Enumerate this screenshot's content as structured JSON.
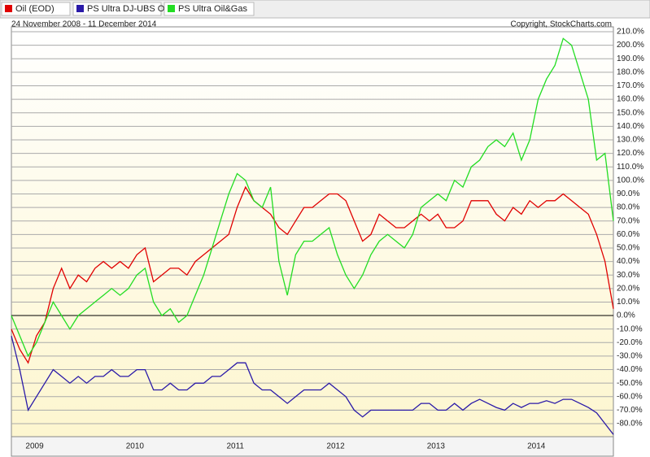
{
  "chart_data": {
    "type": "line",
    "subtitle": "24 November 2008 - 11 December 2014",
    "annotation": "Copyright, StockCharts.com",
    "categories": [
      null,
      null,
      "2009",
      null,
      null,
      null,
      null,
      null,
      null,
      null,
      null,
      null,
      null,
      null,
      "2010",
      null,
      null,
      null,
      null,
      null,
      null,
      null,
      null,
      null,
      null,
      null,
      "2011",
      null,
      null,
      null,
      null,
      null,
      null,
      null,
      null,
      null,
      null,
      null,
      "2012",
      null,
      null,
      null,
      null,
      null,
      null,
      null,
      null,
      null,
      null,
      null,
      "2013",
      null,
      null,
      null,
      null,
      null,
      null,
      null,
      null,
      null,
      null,
      null,
      "2014",
      null,
      null,
      null,
      null,
      null,
      null,
      null,
      null,
      null,
      null
    ],
    "series": [
      {
        "name": "Oil (EOD)",
        "color": "#e00000",
        "values": [
          -10,
          -25,
          -35,
          -15,
          -5,
          20,
          35,
          20,
          30,
          25,
          35,
          40,
          35,
          40,
          35,
          45,
          50,
          25,
          30,
          35,
          35,
          30,
          40,
          45,
          50,
          55,
          60,
          80,
          95,
          85,
          80,
          75,
          65,
          60,
          70,
          80,
          80,
          85,
          90,
          90,
          85,
          70,
          55,
          60,
          75,
          70,
          65,
          65,
          70,
          75,
          70,
          75,
          65,
          65,
          70,
          85,
          85,
          85,
          75,
          70,
          80,
          75,
          85,
          80,
          85,
          85,
          90,
          85,
          80,
          75,
          60,
          40,
          5
        ]
      },
      {
        "name": "PS Ultra DJ-UBS Oil",
        "color": "#2a1aa8",
        "values": [
          -15,
          -40,
          -70,
          -60,
          -50,
          -40,
          -45,
          -50,
          -45,
          -50,
          -45,
          -45,
          -40,
          -45,
          -45,
          -40,
          -40,
          -55,
          -55,
          -50,
          -55,
          -55,
          -50,
          -50,
          -45,
          -45,
          -40,
          -35,
          -35,
          -50,
          -55,
          -55,
          -60,
          -65,
          -60,
          -55,
          -55,
          -55,
          -50,
          -55,
          -60,
          -70,
          -75,
          -70,
          -70,
          -70,
          -70,
          -70,
          -70,
          -65,
          -65,
          -70,
          -70,
          -65,
          -70,
          -65,
          -62,
          -65,
          -68,
          -70,
          -65,
          -68,
          -65,
          -65,
          -63,
          -65,
          -62,
          -62,
          -65,
          -68,
          -72,
          -80,
          -88
        ]
      },
      {
        "name": "PS Ultra Oil&Gas",
        "color": "#22dd22",
        "values": [
          0,
          -15,
          -30,
          -20,
          -5,
          10,
          0,
          -10,
          0,
          5,
          10,
          15,
          20,
          15,
          20,
          30,
          35,
          10,
          0,
          5,
          -5,
          0,
          15,
          30,
          50,
          70,
          90,
          105,
          100,
          85,
          80,
          95,
          40,
          15,
          45,
          55,
          55,
          60,
          65,
          45,
          30,
          20,
          30,
          45,
          55,
          60,
          55,
          50,
          60,
          80,
          85,
          90,
          85,
          100,
          95,
          110,
          115,
          125,
          130,
          125,
          135,
          115,
          130,
          160,
          175,
          185,
          205,
          200,
          180,
          160,
          115,
          120,
          70
        ]
      }
    ],
    "ylim": [
      -89.6,
      213.6
    ],
    "yticks": [
      {
        "value": -80,
        "label": "-80.0%"
      },
      {
        "value": -70,
        "label": "-70.0%"
      },
      {
        "value": -60,
        "label": "-60.0%"
      },
      {
        "value": -50,
        "label": "-50.0%"
      },
      {
        "value": -40,
        "label": "-40.0%"
      },
      {
        "value": -30,
        "label": "-30.0%"
      },
      {
        "value": -20,
        "label": "-20.0%"
      },
      {
        "value": -10,
        "label": "-10.0%"
      },
      {
        "value": 0,
        "label": "0.0%"
      },
      {
        "value": 10,
        "label": "10.0%"
      },
      {
        "value": 20,
        "label": "20.0%"
      },
      {
        "value": 30,
        "label": "30.0%"
      },
      {
        "value": 40,
        "label": "40.0%"
      },
      {
        "value": 50,
        "label": "50.0%"
      },
      {
        "value": 60,
        "label": "60.0%"
      },
      {
        "value": 70,
        "label": "70.0%"
      },
      {
        "value": 80,
        "label": "80.0%"
      },
      {
        "value": 90,
        "label": "90.0%"
      },
      {
        "value": 100,
        "label": "100.0%"
      },
      {
        "value": 110,
        "label": "110.0%"
      },
      {
        "value": 120,
        "label": "120.0%"
      },
      {
        "value": 130,
        "label": "130.0%"
      },
      {
        "value": 140,
        "label": "140.0%"
      },
      {
        "value": 150,
        "label": "150.0%"
      },
      {
        "value": 160,
        "label": "160.0%"
      },
      {
        "value": 170,
        "label": "170.0%"
      },
      {
        "value": 180,
        "label": "180.0%"
      },
      {
        "value": 190,
        "label": "190.0%"
      },
      {
        "value": 200,
        "label": "200.0%"
      },
      {
        "value": 210,
        "label": "210.0%"
      }
    ],
    "grid": true
  }
}
